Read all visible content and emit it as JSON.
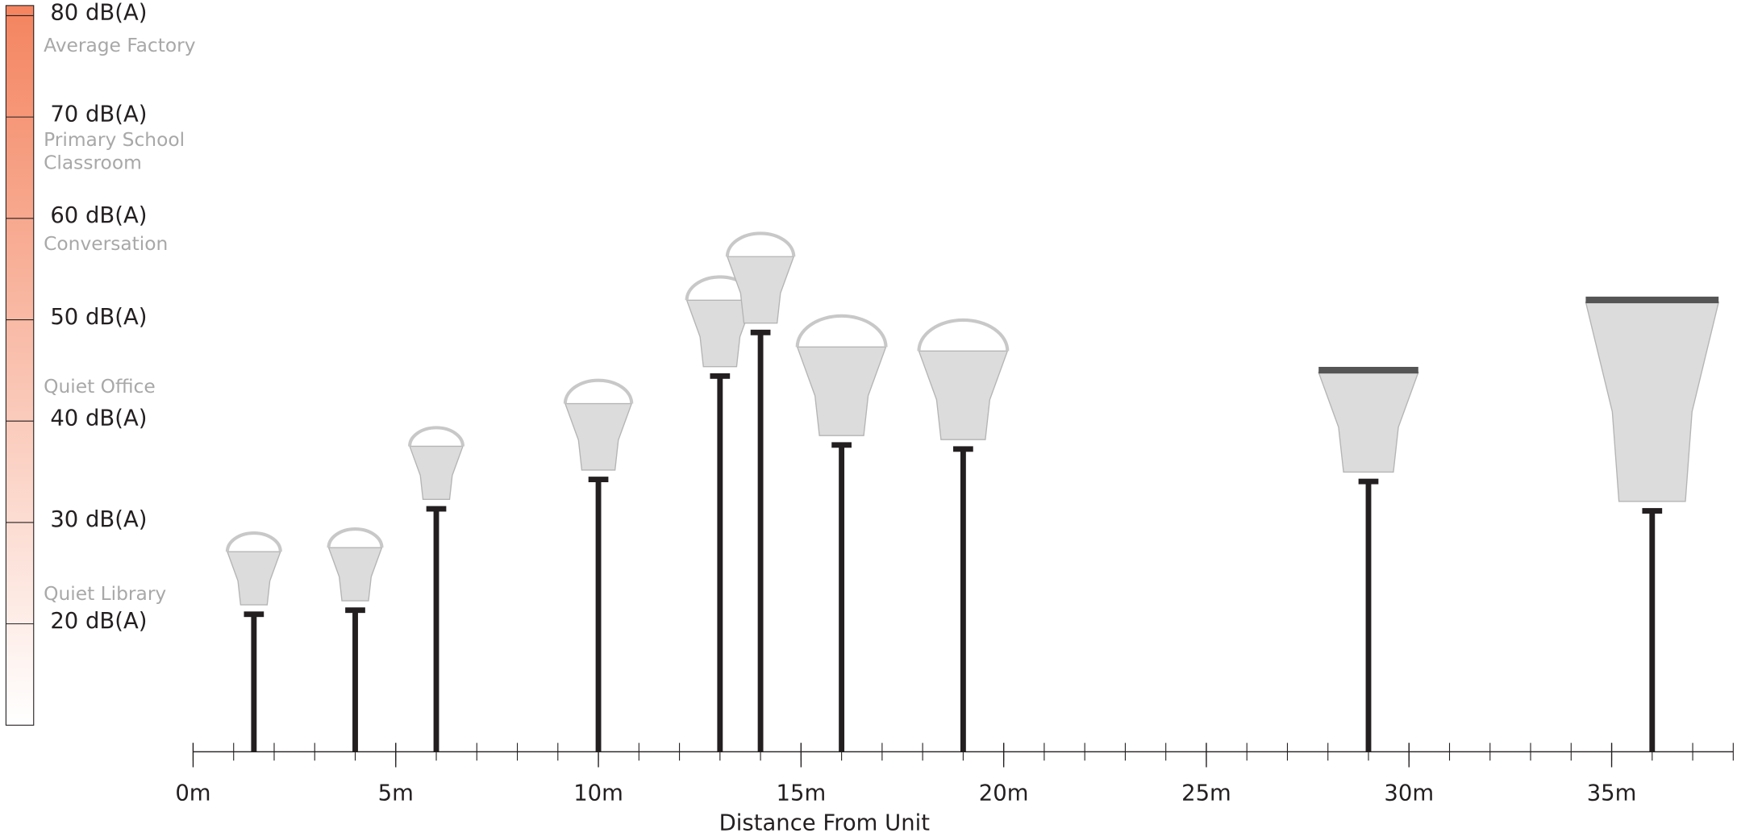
{
  "chart_data": {
    "type": "stalk",
    "x_label": "Distance From Unit",
    "x": [
      1.5,
      4,
      6,
      10,
      13,
      14,
      16,
      19,
      29,
      36
    ],
    "values": [
      21,
      21.4,
      31.4,
      34.3,
      44.5,
      48.8,
      37.7,
      37.3,
      34.1,
      31.2
    ],
    "color": "#231f20",
    "xlim": [
      0,
      38
    ],
    "xticks": [
      {
        "value": 0,
        "label": "0m"
      },
      {
        "value": 5,
        "label": "5m"
      },
      {
        "value": 10,
        "label": "10m"
      },
      {
        "value": 15,
        "label": "15m"
      },
      {
        "value": 20,
        "label": "20m"
      },
      {
        "value": 25,
        "label": "25m"
      },
      {
        "value": 30,
        "label": "30m"
      },
      {
        "value": 35,
        "label": "35m"
      }
    ],
    "minor_xticks": [
      0,
      1,
      2,
      3,
      4,
      5,
      6,
      7,
      8,
      9,
      10,
      11,
      12,
      13,
      14,
      15,
      16,
      17,
      18,
      19,
      20,
      21,
      22,
      23,
      24,
      25,
      26,
      27,
      28,
      29,
      30,
      31,
      32,
      33,
      34,
      35,
      36,
      37,
      38
    ],
    "ylim": [
      10,
      81
    ],
    "yticks": [
      {
        "value": 20,
        "label": "20 dB(A)"
      },
      {
        "value": 30,
        "label": "30 dB(A)"
      },
      {
        "value": 40,
        "label": "40 dB(A)"
      },
      {
        "value": 50,
        "label": "50 dB(A)"
      },
      {
        "value": 60,
        "label": "60 dB(A)"
      },
      {
        "value": 70,
        "label": "70 dB(A)"
      },
      {
        "value": 80,
        "label": "80 dB(A)"
      }
    ],
    "scale_colors": [
      "#f4845f",
      "#ffffff"
    ],
    "annotations": [
      "Average Factory",
      "Primary School",
      "Classroom",
      "Conversation",
      "Quiet Office",
      "Quiet Library"
    ]
  }
}
